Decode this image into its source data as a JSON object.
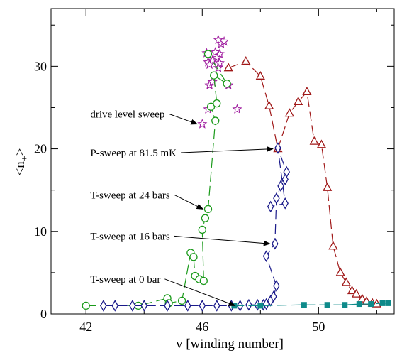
{
  "chart_data": {
    "type": "scatter",
    "title": "",
    "xlabel": "v [winding number]",
    "ylabel": "<n+>",
    "ylabel_main": "<n",
    "ylabel_sub": "+",
    "ylabel_close": ">",
    "xlim": [
      40.8,
      52.6
    ],
    "ylim": [
      0,
      37
    ],
    "xticks": [
      42,
      46,
      50
    ],
    "yticks": [
      0,
      10,
      20,
      30
    ],
    "xtick_labels": [
      "42",
      "46",
      "50"
    ],
    "ytick_labels": [
      "0",
      "10",
      "20",
      "30"
    ],
    "grid": false,
    "legend": "none",
    "series": [
      {
        "marker": "star",
        "color": "#a020a0",
        "line": "none",
        "points": [
          [
            46.0,
            23.0
          ],
          [
            46.2,
            24.8
          ],
          [
            46.25,
            27.7
          ],
          [
            46.35,
            28.1
          ],
          [
            46.9,
            27.7
          ],
          [
            47.2,
            24.8
          ],
          [
            46.55,
            33.2
          ],
          [
            46.65,
            32.7
          ],
          [
            46.75,
            33.0
          ],
          [
            46.6,
            31.5
          ],
          [
            46.45,
            31.7
          ],
          [
            46.5,
            31.0
          ],
          [
            46.15,
            31.6
          ],
          [
            46.2,
            30.5
          ],
          [
            46.35,
            30.7
          ],
          [
            46.6,
            30.4
          ],
          [
            46.25,
            30.2
          ],
          [
            46.55,
            29.8
          ]
        ]
      },
      {
        "marker": "triangle",
        "color": "#a01818",
        "line": "dashed",
        "points": [
          [
            46.9,
            29.8
          ],
          [
            47.5,
            30.6
          ],
          [
            48.0,
            28.8
          ],
          [
            48.3,
            25.2
          ],
          [
            48.6,
            20.0
          ],
          [
            49.0,
            24.3
          ],
          [
            49.3,
            25.7
          ],
          [
            49.6,
            26.9
          ],
          [
            49.85,
            20.9
          ],
          [
            50.1,
            20.5
          ],
          [
            50.3,
            15.3
          ],
          [
            50.5,
            8.2
          ],
          [
            50.75,
            5.0
          ],
          [
            50.95,
            3.8
          ],
          [
            51.15,
            2.8
          ],
          [
            51.3,
            2.4
          ],
          [
            51.5,
            1.8
          ],
          [
            51.65,
            1.5
          ],
          [
            51.85,
            1.3
          ],
          [
            52.0,
            1.2
          ]
        ]
      },
      {
        "marker": "circle",
        "color": "#1a9a1a",
        "line": "dashed",
        "points": [
          [
            42.0,
            1.0
          ],
          [
            43.8,
            1.0
          ],
          [
            44.8,
            1.9
          ],
          [
            44.85,
            1.3
          ],
          [
            45.3,
            1.6
          ],
          [
            45.6,
            7.4
          ],
          [
            45.7,
            6.9
          ],
          [
            45.75,
            4.6
          ],
          [
            45.9,
            4.2
          ],
          [
            46.05,
            4.0
          ],
          [
            46.0,
            10.2
          ],
          [
            46.1,
            11.6
          ],
          [
            46.2,
            12.7
          ],
          [
            46.45,
            23.4
          ],
          [
            46.3,
            25.1
          ],
          [
            46.5,
            25.5
          ],
          [
            46.4,
            28.9
          ],
          [
            46.85,
            27.9
          ],
          [
            46.2,
            31.5
          ]
        ]
      },
      {
        "marker": "diamond",
        "color": "#1a1a8a",
        "line": "dashed",
        "points": [
          [
            42.6,
            1.0
          ],
          [
            43.0,
            1.0
          ],
          [
            43.6,
            1.0
          ],
          [
            44.0,
            1.0
          ],
          [
            44.8,
            1.0
          ],
          [
            45.5,
            1.0
          ],
          [
            46.0,
            1.0
          ],
          [
            46.5,
            1.0
          ],
          [
            47.0,
            1.0
          ],
          [
            47.3,
            1.0
          ],
          [
            47.6,
            1.1
          ],
          [
            47.9,
            1.1
          ],
          [
            48.1,
            1.1
          ],
          [
            48.2,
            1.2
          ],
          [
            48.35,
            1.6
          ],
          [
            48.45,
            2.1
          ],
          [
            48.55,
            3.4
          ],
          [
            48.2,
            7.0
          ],
          [
            48.5,
            8.5
          ],
          [
            48.55,
            14.0
          ],
          [
            48.7,
            15.5
          ],
          [
            48.85,
            16.3
          ],
          [
            48.9,
            17.2
          ],
          [
            48.6,
            20.1
          ],
          [
            48.85,
            13.4
          ],
          [
            48.35,
            13.0
          ]
        ]
      },
      {
        "marker": "square",
        "color": "#0f8a8a",
        "line": "dashed",
        "points": [
          [
            47.1,
            1.0
          ],
          [
            48.0,
            1.0
          ],
          [
            49.5,
            1.1
          ],
          [
            50.3,
            1.1
          ],
          [
            50.9,
            1.1
          ],
          [
            51.4,
            1.2
          ],
          [
            51.8,
            1.2
          ],
          [
            52.2,
            1.3
          ],
          [
            52.4,
            1.3
          ]
        ]
      }
    ],
    "annotations": [
      {
        "text": "drive level sweep",
        "label_x": 42.15,
        "label_y": 23.8,
        "arrow_to": [
          46.0,
          23.0
        ]
      },
      {
        "text": "P-sweep at 81.5 mK",
        "label_x": 42.15,
        "label_y": 19.1,
        "arrow_to": [
          48.6,
          20.0
        ]
      },
      {
        "text": "T-sweep at 24 bars",
        "label_x": 42.15,
        "label_y": 14.0,
        "arrow_to": [
          46.2,
          12.7
        ]
      },
      {
        "text": "T-sweep at 16 bars",
        "label_x": 42.15,
        "label_y": 9.0,
        "arrow_to": [
          48.5,
          8.5
        ]
      },
      {
        "text": "T-sweep at 0 bar",
        "label_x": 42.15,
        "label_y": 3.8,
        "arrow_to": [
          47.3,
          1.0
        ]
      }
    ]
  }
}
